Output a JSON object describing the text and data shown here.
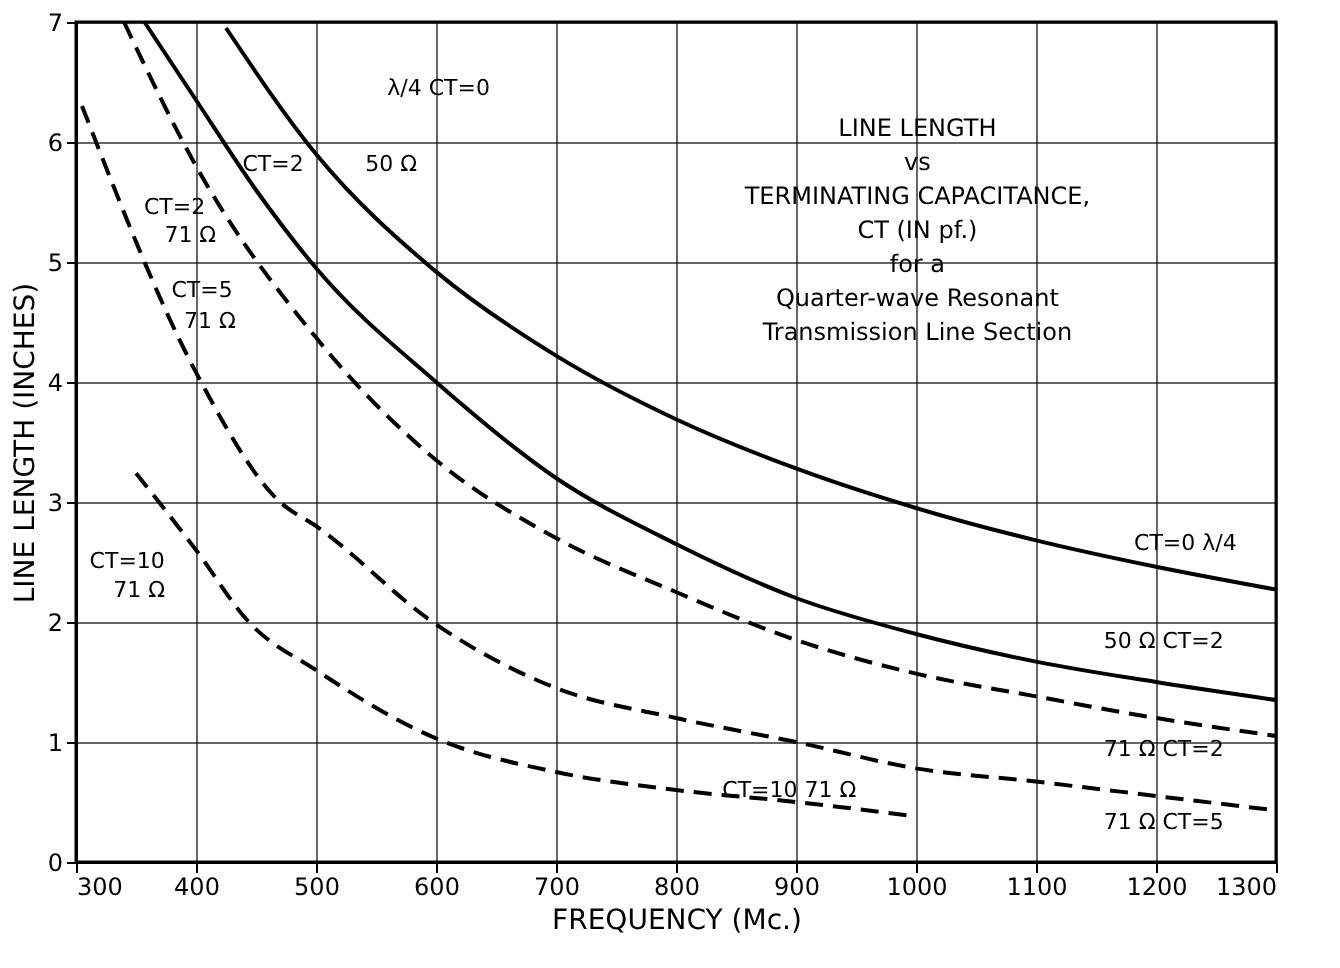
{
  "chart_data": {
    "type": "line",
    "title": "LINE LENGTH\nvs\nTERMINATING CAPACITANCE,\nCT (IN pf.)\nfor a\nQuarter-wave Resonant\nTransmission Line Section",
    "xlabel": "FREQUENCY (Mc.)",
    "ylabel": "LINE LENGTH (INCHES)",
    "xlim": [
      300,
      1300
    ],
    "xticks": [
      300,
      400,
      500,
      600,
      700,
      800,
      900,
      1000,
      1100,
      1200,
      1300
    ],
    "ylim": [
      0,
      7
    ],
    "yticks": [
      0,
      1,
      2,
      3,
      4,
      5,
      6,
      7
    ],
    "grid": true,
    "marker": "none",
    "series": [
      {
        "color": "#000000",
        "line_style": "solid",
        "x": [
          425,
          500,
          600,
          700,
          800,
          900,
          1000,
          1100,
          1200,
          1300
        ],
        "values": [
          6.95,
          5.9,
          4.92,
          4.22,
          3.69,
          3.28,
          2.95,
          2.68,
          2.46,
          2.27
        ]
      },
      {
        "color": "#000000",
        "line_style": "solid",
        "x": [
          357,
          400,
          450,
          500,
          600,
          700,
          800,
          900,
          1000,
          1100,
          1200,
          1300
        ],
        "values": [
          7.0,
          6.35,
          5.6,
          4.95,
          4.0,
          3.2,
          2.65,
          2.2,
          1.9,
          1.67,
          1.5,
          1.35
        ]
      },
      {
        "color": "#000000",
        "line_style": "dashed",
        "x": [
          340,
          400,
          500,
          600,
          700,
          800,
          900,
          1000,
          1100,
          1200,
          1300
        ],
        "values": [
          7.0,
          5.8,
          4.37,
          3.35,
          2.7,
          2.25,
          1.85,
          1.57,
          1.38,
          1.2,
          1.05
        ]
      },
      {
        "color": "#000000",
        "line_style": "dashed",
        "x": [
          305,
          400,
          470,
          500,
          600,
          700,
          800,
          900,
          1000,
          1100,
          1200,
          1300
        ],
        "values": [
          6.3,
          4.08,
          3.0,
          2.8,
          1.98,
          1.45,
          1.2,
          1.0,
          0.78,
          0.67,
          0.55,
          0.43
        ]
      },
      {
        "color": "#000000",
        "line_style": "dashed",
        "x": [
          350,
          400,
          444,
          500,
          600,
          700,
          800,
          900,
          1000
        ],
        "values": [
          3.24,
          2.6,
          2.0,
          1.6,
          1.03,
          0.75,
          0.6,
          0.5,
          0.38
        ]
      }
    ],
    "annotations": [
      "λ/4 CT=0",
      "CT=2",
      "50 Ω",
      "CT=2",
      "71 Ω",
      "CT=5",
      "71 Ω",
      "CT=10",
      "71 Ω",
      "CT=0 λ/4",
      "50 Ω   CT=2",
      "71 Ω   CT=2",
      "71 Ω   CT=5",
      "CT=10   71 Ω"
    ]
  }
}
